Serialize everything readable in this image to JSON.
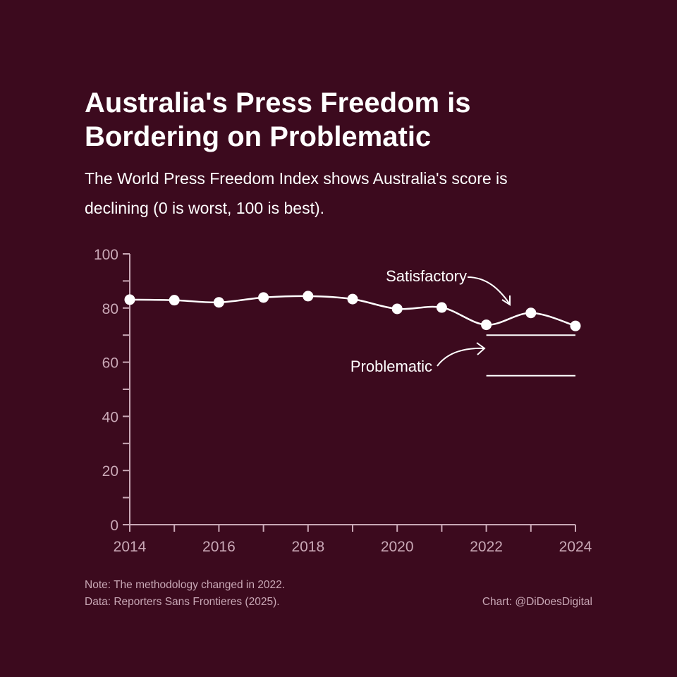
{
  "title_line1": "Australia's Press Freedom is",
  "title_line2": "Bordering on Problematic",
  "subtitle_line1": "The World Press Freedom Index shows Australia's score is",
  "subtitle_line2": "declining (0 is worst, 100 is best).",
  "note": "Note: The methodology changed in 2022.",
  "source": "Data: Reporters Sans Frontieres (2025).",
  "credit": "Chart: @DiDoesDigital",
  "colors": {
    "background": "#3c0a1e",
    "line": "#ffffff",
    "axis": "#c9a8b6"
  },
  "chart_data": {
    "type": "line",
    "x": [
      2014,
      2015,
      2016,
      2017,
      2018,
      2019,
      2020,
      2021,
      2022,
      2023,
      2024
    ],
    "values": [
      83.1,
      82.9,
      82.1,
      83.9,
      84.4,
      83.3,
      79.7,
      80.2,
      73.8,
      78.2,
      73.4
    ],
    "xlim": [
      2014,
      2024
    ],
    "ylim": [
      0,
      100
    ],
    "x_ticks": [
      2014,
      2016,
      2018,
      2020,
      2022,
      2024
    ],
    "y_ticks": [
      0,
      20,
      40,
      60,
      80,
      100
    ],
    "y_minor_ticks": [
      10,
      30,
      50,
      70,
      90
    ],
    "x_minor_ticks": [
      2015,
      2017,
      2019,
      2021,
      2023
    ],
    "grid": false,
    "annotations": [
      {
        "label": "Satisfactory",
        "threshold": 70,
        "x_range": [
          2022,
          2024
        ]
      },
      {
        "label": "Problematic",
        "threshold": 55,
        "x_range": [
          2022,
          2024
        ]
      }
    ]
  }
}
